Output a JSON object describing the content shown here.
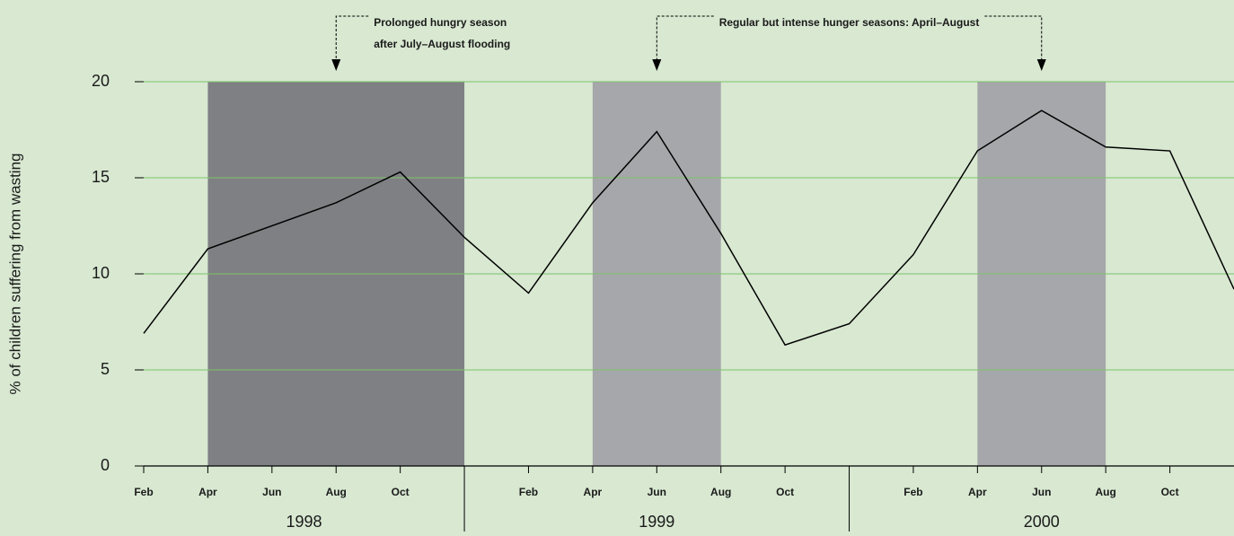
{
  "chart_data": {
    "type": "line",
    "ylabel": "% of children suffering from wasting",
    "x": [
      "1998-02",
      "1998-04",
      "1998-08",
      "1998-10",
      "1998-12",
      "1999-02",
      "1999-04",
      "1999-06",
      "1999-08",
      "1999-10",
      "1999-12",
      "2000-02",
      "2000-04",
      "2000-06",
      "2000-08",
      "2000-10",
      "2000-12"
    ],
    "series": [
      {
        "color": "#000000",
        "values": [
          6.9,
          11.3,
          13.7,
          15.3,
          11.9,
          9.0,
          13.7,
          17.4,
          12.1,
          6.3,
          7.4,
          11.0,
          16.4,
          18.5,
          16.6,
          16.4,
          9.2
        ]
      }
    ],
    "xlim": [
      "1998-02",
      "2000-12"
    ],
    "ylim": [
      0,
      20
    ],
    "yticks": [
      0,
      5,
      10,
      15,
      20
    ],
    "grid": true,
    "grid_color": "#7cc46a",
    "xticks": [
      {
        "value": "1998-02",
        "label": "Feb"
      },
      {
        "value": "1998-04",
        "label": "Apr"
      },
      {
        "value": "1998-06",
        "label": "Jun"
      },
      {
        "value": "1998-08",
        "label": "Aug"
      },
      {
        "value": "1998-10",
        "label": "Oct"
      },
      {
        "value": "1999-02",
        "label": "Feb"
      },
      {
        "value": "1999-04",
        "label": "Apr"
      },
      {
        "value": "1999-06",
        "label": "Jun"
      },
      {
        "value": "1999-08",
        "label": "Aug"
      },
      {
        "value": "1999-10",
        "label": "Oct"
      },
      {
        "value": "2000-02",
        "label": "Feb"
      },
      {
        "value": "2000-04",
        "label": "Apr"
      },
      {
        "value": "2000-06",
        "label": "Jun"
      },
      {
        "value": "2000-08",
        "label": "Aug"
      },
      {
        "value": "2000-10",
        "label": "Oct"
      }
    ],
    "years": [
      "1998",
      "1999",
      "2000"
    ],
    "year_dividers": [
      "1998-12",
      "1999-12"
    ],
    "shaded_periods": [
      {
        "start": "1998-04",
        "end": "1998-12",
        "color": "#7f8083"
      },
      {
        "start": "1999-04",
        "end": "1999-08",
        "color": "#a6a7aa"
      },
      {
        "start": "2000-04",
        "end": "2000-08",
        "color": "#a6a7aa"
      }
    ],
    "annotations": [
      {
        "text": [
          "Prolonged hungry season",
          "after July–August flooding"
        ],
        "arrows": [
          "1998-08"
        ]
      },
      {
        "text": [
          "Regular but intense hunger seasons: April–August"
        ],
        "arrows": [
          "1999-06",
          "2000-06"
        ]
      }
    ]
  }
}
